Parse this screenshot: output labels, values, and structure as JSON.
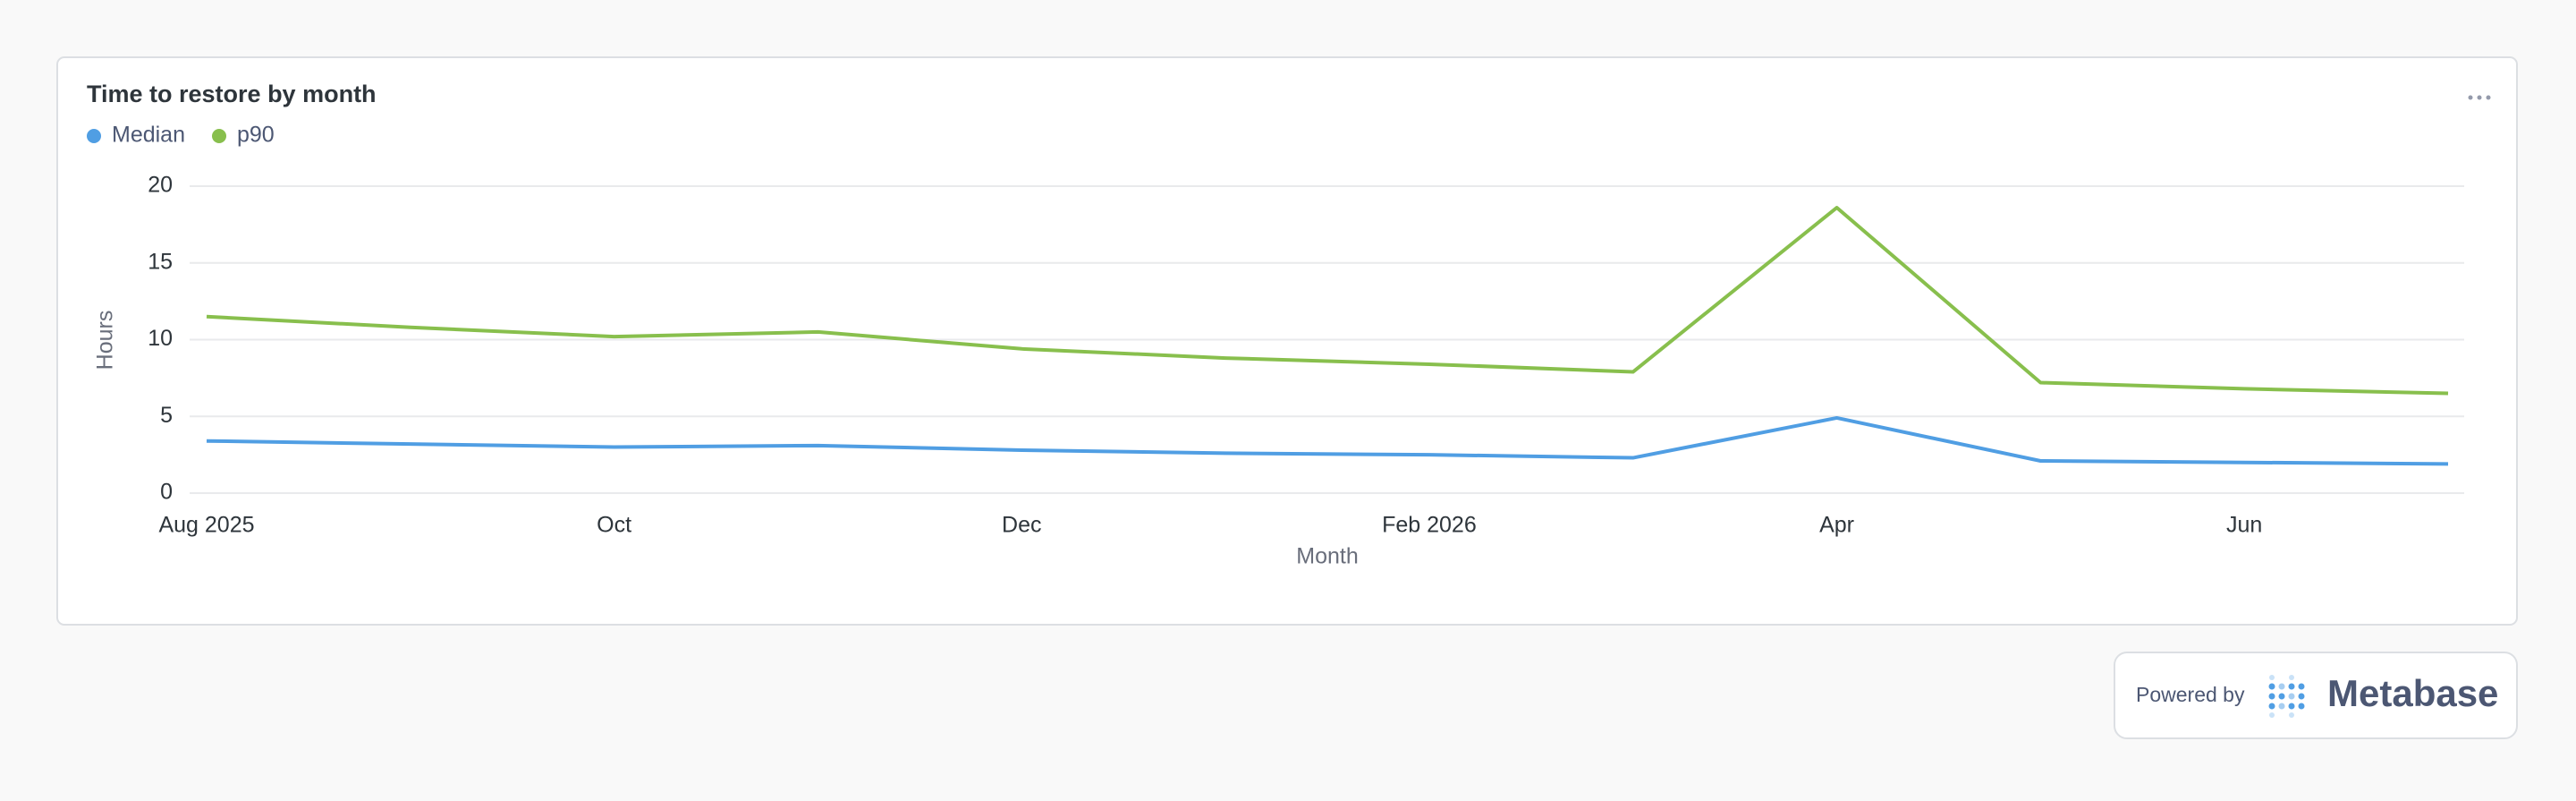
{
  "chart_data": {
    "type": "line",
    "title": "Time to restore by month",
    "x_label": "Month",
    "y_label": "Hours",
    "categories": [
      "Aug 2025",
      null,
      "Oct",
      null,
      "Dec",
      null,
      "Feb 2026",
      null,
      "Apr",
      null,
      "Jun",
      null
    ],
    "series": [
      {
        "name": "Median",
        "color": "#509ee3",
        "values": [
          3.4,
          3.2,
          3.0,
          3.1,
          2.8,
          2.6,
          2.5,
          2.3,
          4.9,
          2.1,
          2.0,
          1.9
        ]
      },
      {
        "name": "p90",
        "color": "#88bf4d",
        "values": [
          11.5,
          10.8,
          10.2,
          10.5,
          9.4,
          8.8,
          8.4,
          7.9,
          18.6,
          7.2,
          6.8,
          6.5
        ]
      }
    ],
    "ylim": [
      0,
      20
    ],
    "yticks": [
      0,
      5,
      10,
      15,
      20
    ],
    "grid": true,
    "legend": "top-left"
  },
  "footer": {
    "powered_by": "Powered by",
    "brand": "Metabase"
  }
}
